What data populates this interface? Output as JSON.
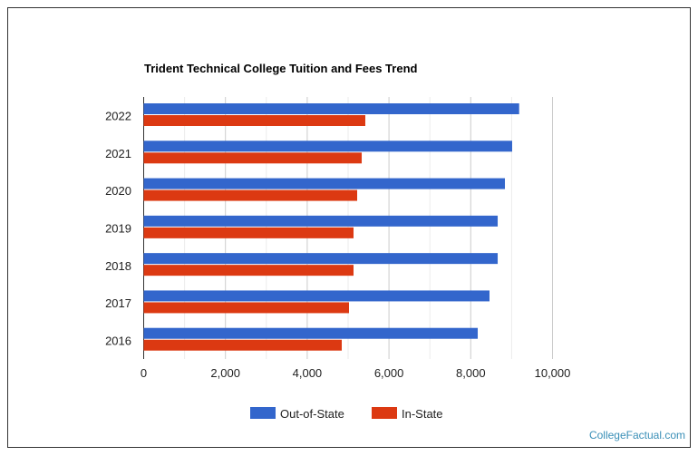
{
  "chart_data": {
    "type": "bar",
    "orientation": "horizontal",
    "title": "Trident Technical College Tuition and Fees Trend",
    "categories": [
      "2022",
      "2021",
      "2020",
      "2019",
      "2018",
      "2017",
      "2016"
    ],
    "series": [
      {
        "name": "Out-of-State",
        "color": "#3366cc",
        "values": [
          9184,
          9013,
          8836,
          8659,
          8659,
          8459,
          8171
        ]
      },
      {
        "name": "In-State",
        "color": "#dc3912",
        "values": [
          5421,
          5333,
          5222,
          5133,
          5133,
          5022,
          4845
        ]
      }
    ],
    "xlim": [
      0,
      10000
    ],
    "xticks": [
      0,
      2000,
      4000,
      6000,
      8000,
      10000
    ],
    "xtick_labels": [
      "0",
      "2,000",
      "4,000",
      "6,000",
      "8,000",
      "10,000"
    ],
    "grid": true,
    "legend": "bottom"
  },
  "credit": "CollegeFactual.com"
}
